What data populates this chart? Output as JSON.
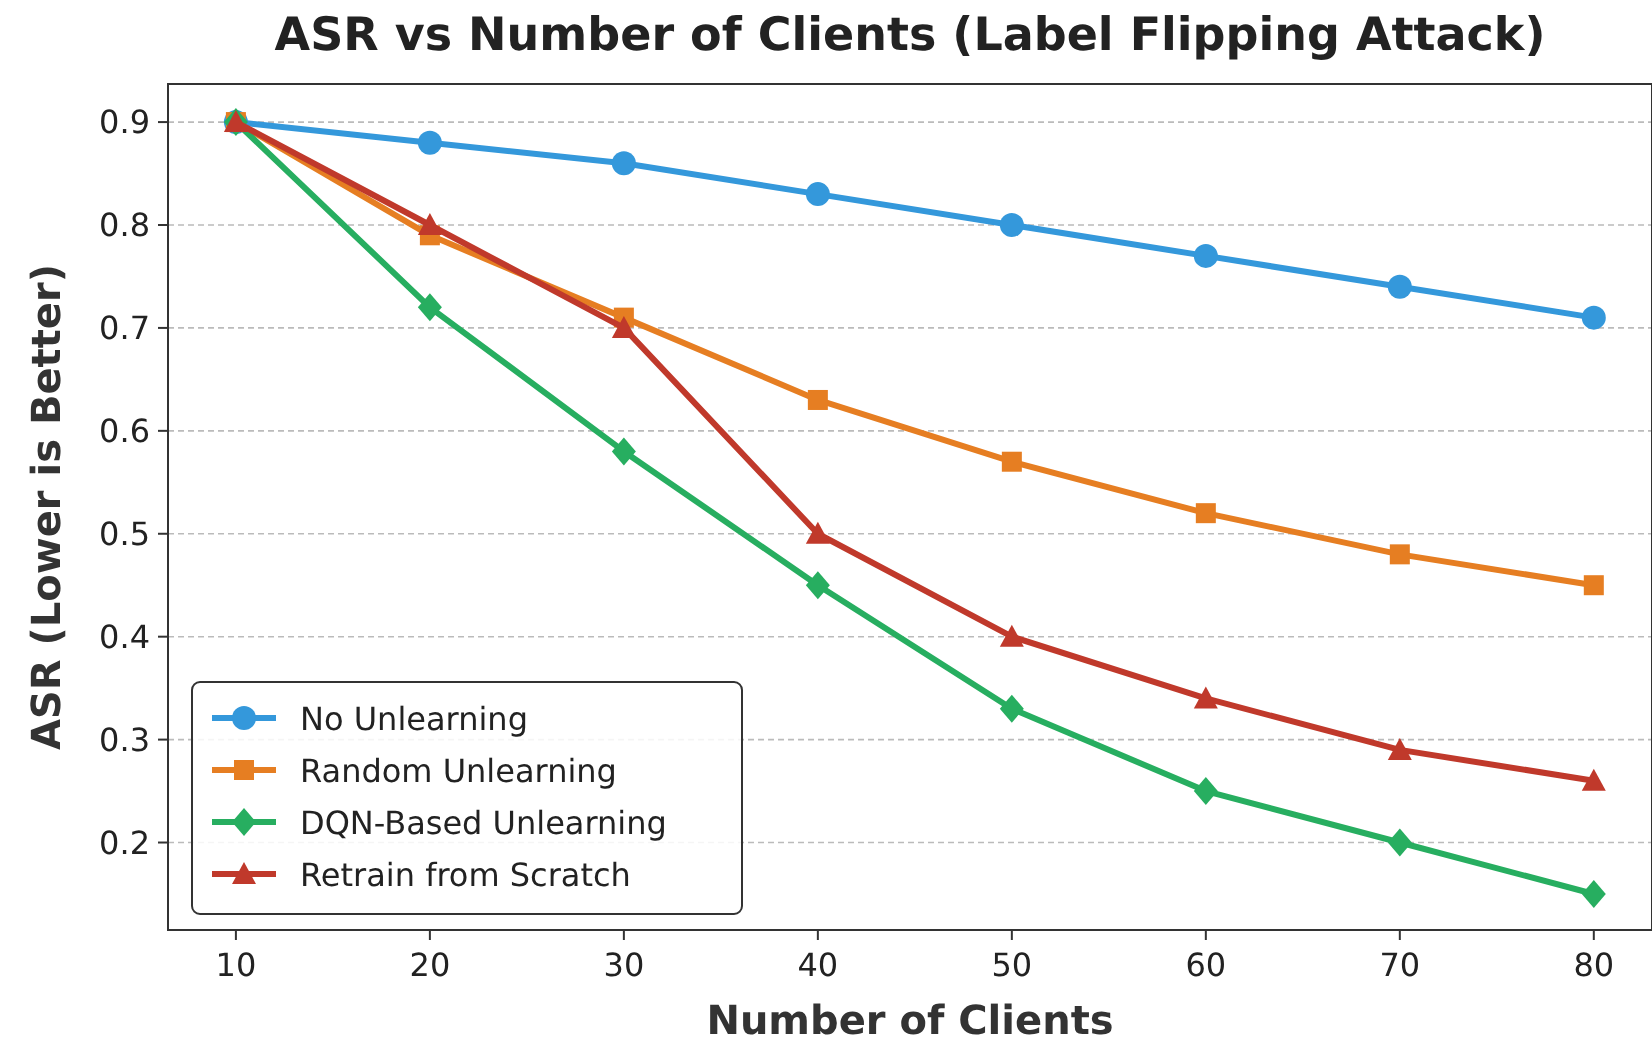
{
  "chart_data": {
    "type": "line",
    "title": "ASR vs Number of Clients (Label Flipping Attack)",
    "xlabel": "Number of Clients",
    "ylabel": "ASR (Lower is Better)",
    "x": [
      10,
      20,
      30,
      40,
      50,
      60,
      70,
      80
    ],
    "xlim": [
      6.5,
      83
    ],
    "xticks": [
      10,
      20,
      30,
      40,
      50,
      60,
      70,
      80
    ],
    "ylim": [
      0.115,
      0.937
    ],
    "yticks": [
      0.2,
      0.3,
      0.4,
      0.5,
      0.6,
      0.7,
      0.8,
      0.9
    ],
    "grid": "y",
    "legend": "bottom left",
    "line_style": "solid",
    "series": [
      {
        "name": "No Unlearning",
        "color": "#3498db",
        "marker": "circle",
        "values": [
          0.9,
          0.88,
          0.86,
          0.83,
          0.8,
          0.77,
          0.74,
          0.71
        ]
      },
      {
        "name": "Random Unlearning",
        "color": "#e67e22",
        "marker": "square",
        "values": [
          0.9,
          0.79,
          0.71,
          0.63,
          0.57,
          0.52,
          0.48,
          0.45
        ]
      },
      {
        "name": "DQN-Based Unlearning",
        "color": "#27ae60",
        "marker": "diamond",
        "values": [
          0.9,
          0.72,
          0.58,
          0.45,
          0.33,
          0.25,
          0.2,
          0.15
        ]
      },
      {
        "name": "Retrain from Scratch",
        "color": "#c0392b",
        "marker": "triangle",
        "values": [
          0.9,
          0.8,
          0.7,
          0.5,
          0.4,
          0.34,
          0.29,
          0.26
        ]
      }
    ]
  }
}
